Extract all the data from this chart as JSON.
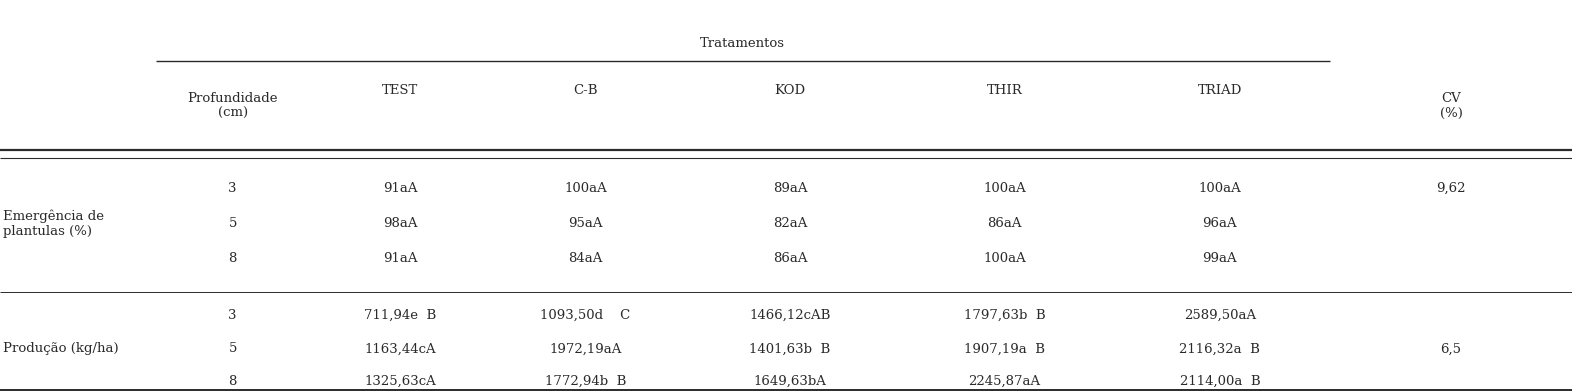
{
  "title": "Tratamentos",
  "col_headers": [
    "Profundidade\n(cm)",
    "TEST",
    "C-B",
    "KOD",
    "THIR",
    "TRIAD",
    "CV\n(%)"
  ],
  "row_groups": [
    {
      "label": "Emergência de\nplantulas (%)",
      "rows": [
        [
          "3",
          "91aA",
          "100aA",
          "89aA",
          "100aA",
          "100aA",
          "9,62"
        ],
        [
          "5",
          "98aA",
          "95aA",
          "82aA",
          "86aA",
          "96aA",
          ""
        ],
        [
          "8",
          "91aA",
          "84aA",
          "86aA",
          "100aA",
          "99aA",
          ""
        ]
      ]
    },
    {
      "label": "Produção (kg/ha)",
      "rows": [
        [
          "3",
          "711,94e  B",
          "1093,50d    C",
          "1466,12cAB",
          "1797,63b  B",
          "2589,50aA",
          ""
        ],
        [
          "5",
          "1163,44cA",
          "1972,19aA",
          "1401,63b  B",
          "1907,19a  B",
          "2116,32a  B",
          "6,5"
        ],
        [
          "8",
          "1325,63cA",
          "1772,94b  B",
          "1649,63bA",
          "2245,87aA",
          "2114,00a  B",
          ""
        ]
      ]
    }
  ],
  "figsize": [
    15.72,
    3.92
  ],
  "dpi": 100,
  "bg_color": "#ffffff",
  "text_color": "#2a2a2a",
  "font_size": 9.5
}
